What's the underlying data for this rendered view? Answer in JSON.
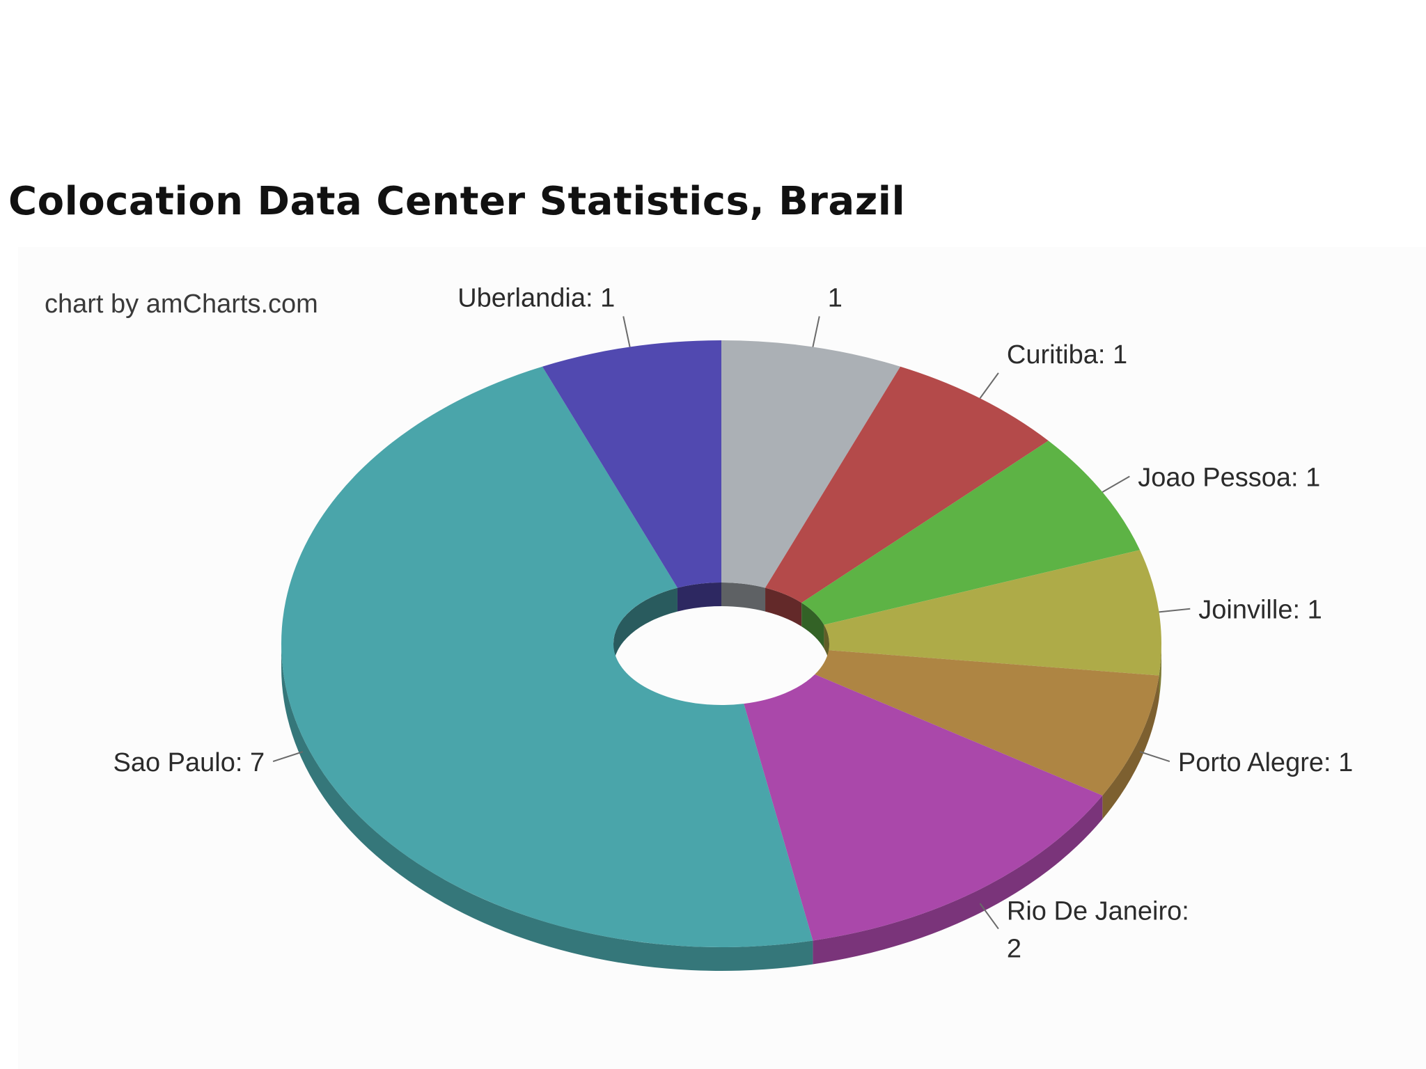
{
  "title": "Colocation Data Center Statistics, Brazil",
  "credit": "chart by amCharts.com",
  "chart_data": {
    "type": "pie",
    "style": "3d donut",
    "title": "Colocation Data Center Statistics, Brazil",
    "slices": [
      {
        "label": "",
        "value": 1,
        "display": "1",
        "color": "#abb0b5"
      },
      {
        "label": "Curitiba",
        "value": 1,
        "display": "Curitiba: 1",
        "color": "#b44a4a"
      },
      {
        "label": "Joao Pessoa",
        "value": 1,
        "display": "Joao Pessoa: 1",
        "color": "#5db345"
      },
      {
        "label": "Joinville",
        "value": 1,
        "display": "Joinville: 1",
        "color": "#aeab48"
      },
      {
        "label": "Porto Alegre",
        "value": 1,
        "display": "Porto Alegre: 1",
        "color": "#ae8543"
      },
      {
        "label": "Rio De Janeiro",
        "value": 2,
        "display": [
          "Rio De Janeiro:",
          "2"
        ],
        "color": "#aa48aa"
      },
      {
        "label": "Sao Paulo",
        "value": 7,
        "display": "Sao Paulo: 7",
        "color": "#4aa5aa"
      },
      {
        "label": "Uberlandia",
        "value": 1,
        "display": "Uberlandia: 1",
        "color": "#5149b0"
      }
    ]
  }
}
